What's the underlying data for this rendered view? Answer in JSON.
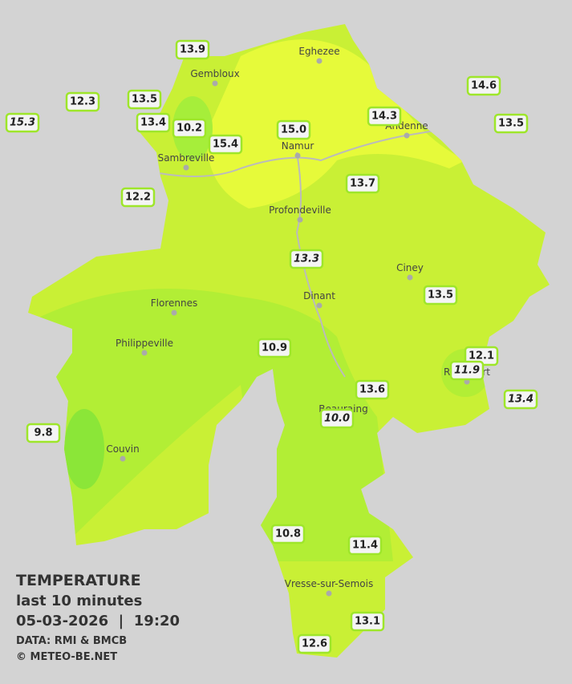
{
  "cities": [
    "Eghezee",
    "Gembloux",
    "Andenne",
    "Namur",
    "Sambreville",
    "Profondeville",
    "Ciney",
    "Dinant",
    "Florennes",
    "Philippeville",
    "Rochefort",
    "Beauraing",
    "Couvin",
    "Vresse-sur-Semois"
  ],
  "stations": [
    {
      "value": "13.9",
      "italic": false
    },
    {
      "value": "14.6",
      "italic": false
    },
    {
      "value": "12.3",
      "italic": false
    },
    {
      "value": "13.5",
      "italic": false
    },
    {
      "value": "15.3",
      "italic": true
    },
    {
      "value": "13.4",
      "italic": false
    },
    {
      "value": "10.2",
      "italic": false
    },
    {
      "value": "14.3",
      "italic": false
    },
    {
      "value": "13.5",
      "italic": false
    },
    {
      "value": "15.0",
      "italic": false
    },
    {
      "value": "15.4",
      "italic": false
    },
    {
      "value": "13.7",
      "italic": false
    },
    {
      "value": "12.2",
      "italic": false
    },
    {
      "value": "13.3",
      "italic": true
    },
    {
      "value": "13.5",
      "italic": false
    },
    {
      "value": "10.9",
      "italic": false
    },
    {
      "value": "12.1",
      "italic": false
    },
    {
      "value": "11.9",
      "italic": true
    },
    {
      "value": "13.6",
      "italic": false
    },
    {
      "value": "13.4",
      "italic": true
    },
    {
      "value": "10.0",
      "italic": true
    },
    {
      "value": "9.8",
      "italic": false
    },
    {
      "value": "10.8",
      "italic": false
    },
    {
      "value": "11.4",
      "italic": false
    },
    {
      "value": "13.1",
      "italic": false
    },
    {
      "value": "12.6",
      "italic": false
    }
  ],
  "legend": {
    "title": "TEMPERATURE",
    "period": "last 10 minutes",
    "datetime": "05-03-2026  |  19:20",
    "source": "DATA: RMI & BMCB",
    "credit": "© METEO-BE.NET"
  }
}
